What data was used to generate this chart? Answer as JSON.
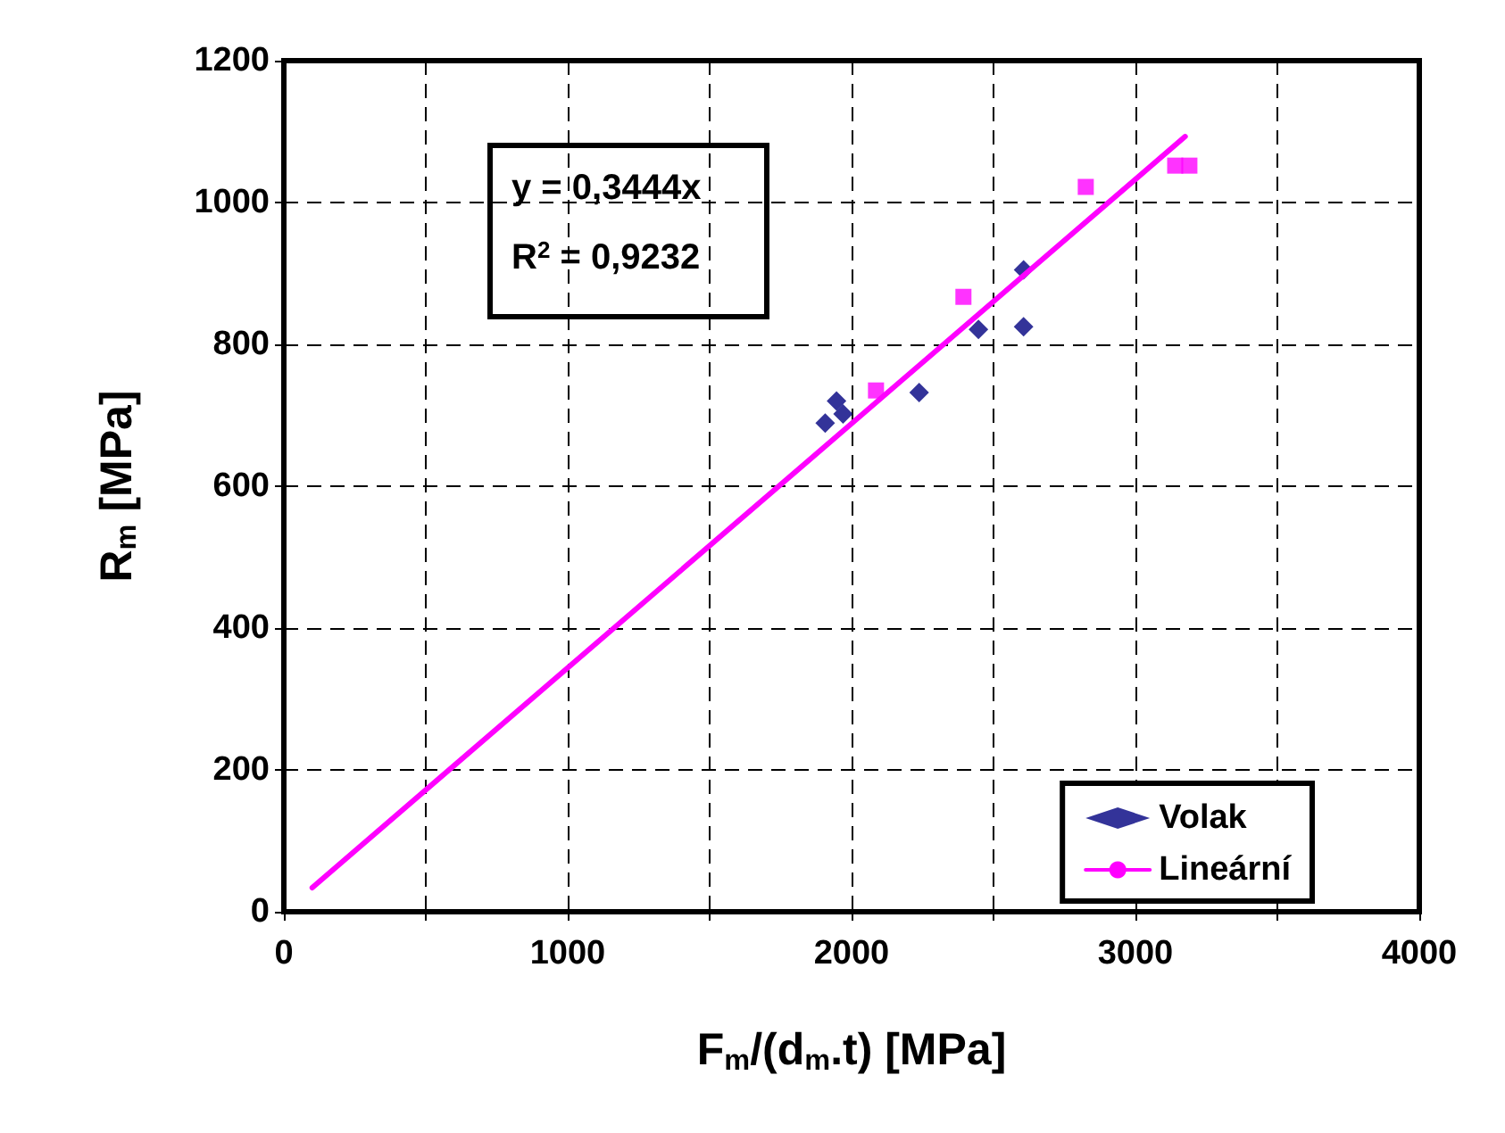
{
  "chart_data": {
    "type": "scatter",
    "xlabel": "F$_{m}$/(d$_{m}$.t) [MPa]",
    "ylabel": "R$_{m}$ [MPa]",
    "annotations": [
      "y = 0,3444x",
      "R$^{2}$ = 0,9232"
    ],
    "xlim": [
      0,
      4000
    ],
    "xticks": [
      0,
      {
        "value": 500,
        "label": null
      },
      1000,
      {
        "value": 1500,
        "label": null
      },
      2000,
      {
        "value": 2500,
        "label": null
      },
      3000,
      {
        "value": 3500,
        "label": null
      },
      4000
    ],
    "ylim": [
      0,
      1200
    ],
    "yticks": [
      0,
      200,
      400,
      600,
      800,
      1000,
      1200
    ],
    "grid": true,
    "legend": "bottom right",
    "series": [
      {
        "color": "#ff00ff",
        "marker": "square",
        "x": [
          2086,
          2394,
          2825,
          3140,
          3190
        ],
        "values": [
          735,
          867,
          1022,
          1052,
          1052
        ]
      },
      {
        "name": "Volak",
        "color": "#000080",
        "marker": "diamond",
        "x": [
          1907,
          1947,
          1970,
          2238,
          2447,
          2606,
          2606
        ],
        "values": [
          689,
          720,
          702,
          732,
          821,
          905,
          825
        ]
      },
      {
        "name": "Lineární",
        "type": "line",
        "color": "#ff00ff",
        "marker": "none",
        "line_style": "solid",
        "x": [
          100,
          3175
        ],
        "values": [
          34,
          1093
        ]
      }
    ]
  }
}
